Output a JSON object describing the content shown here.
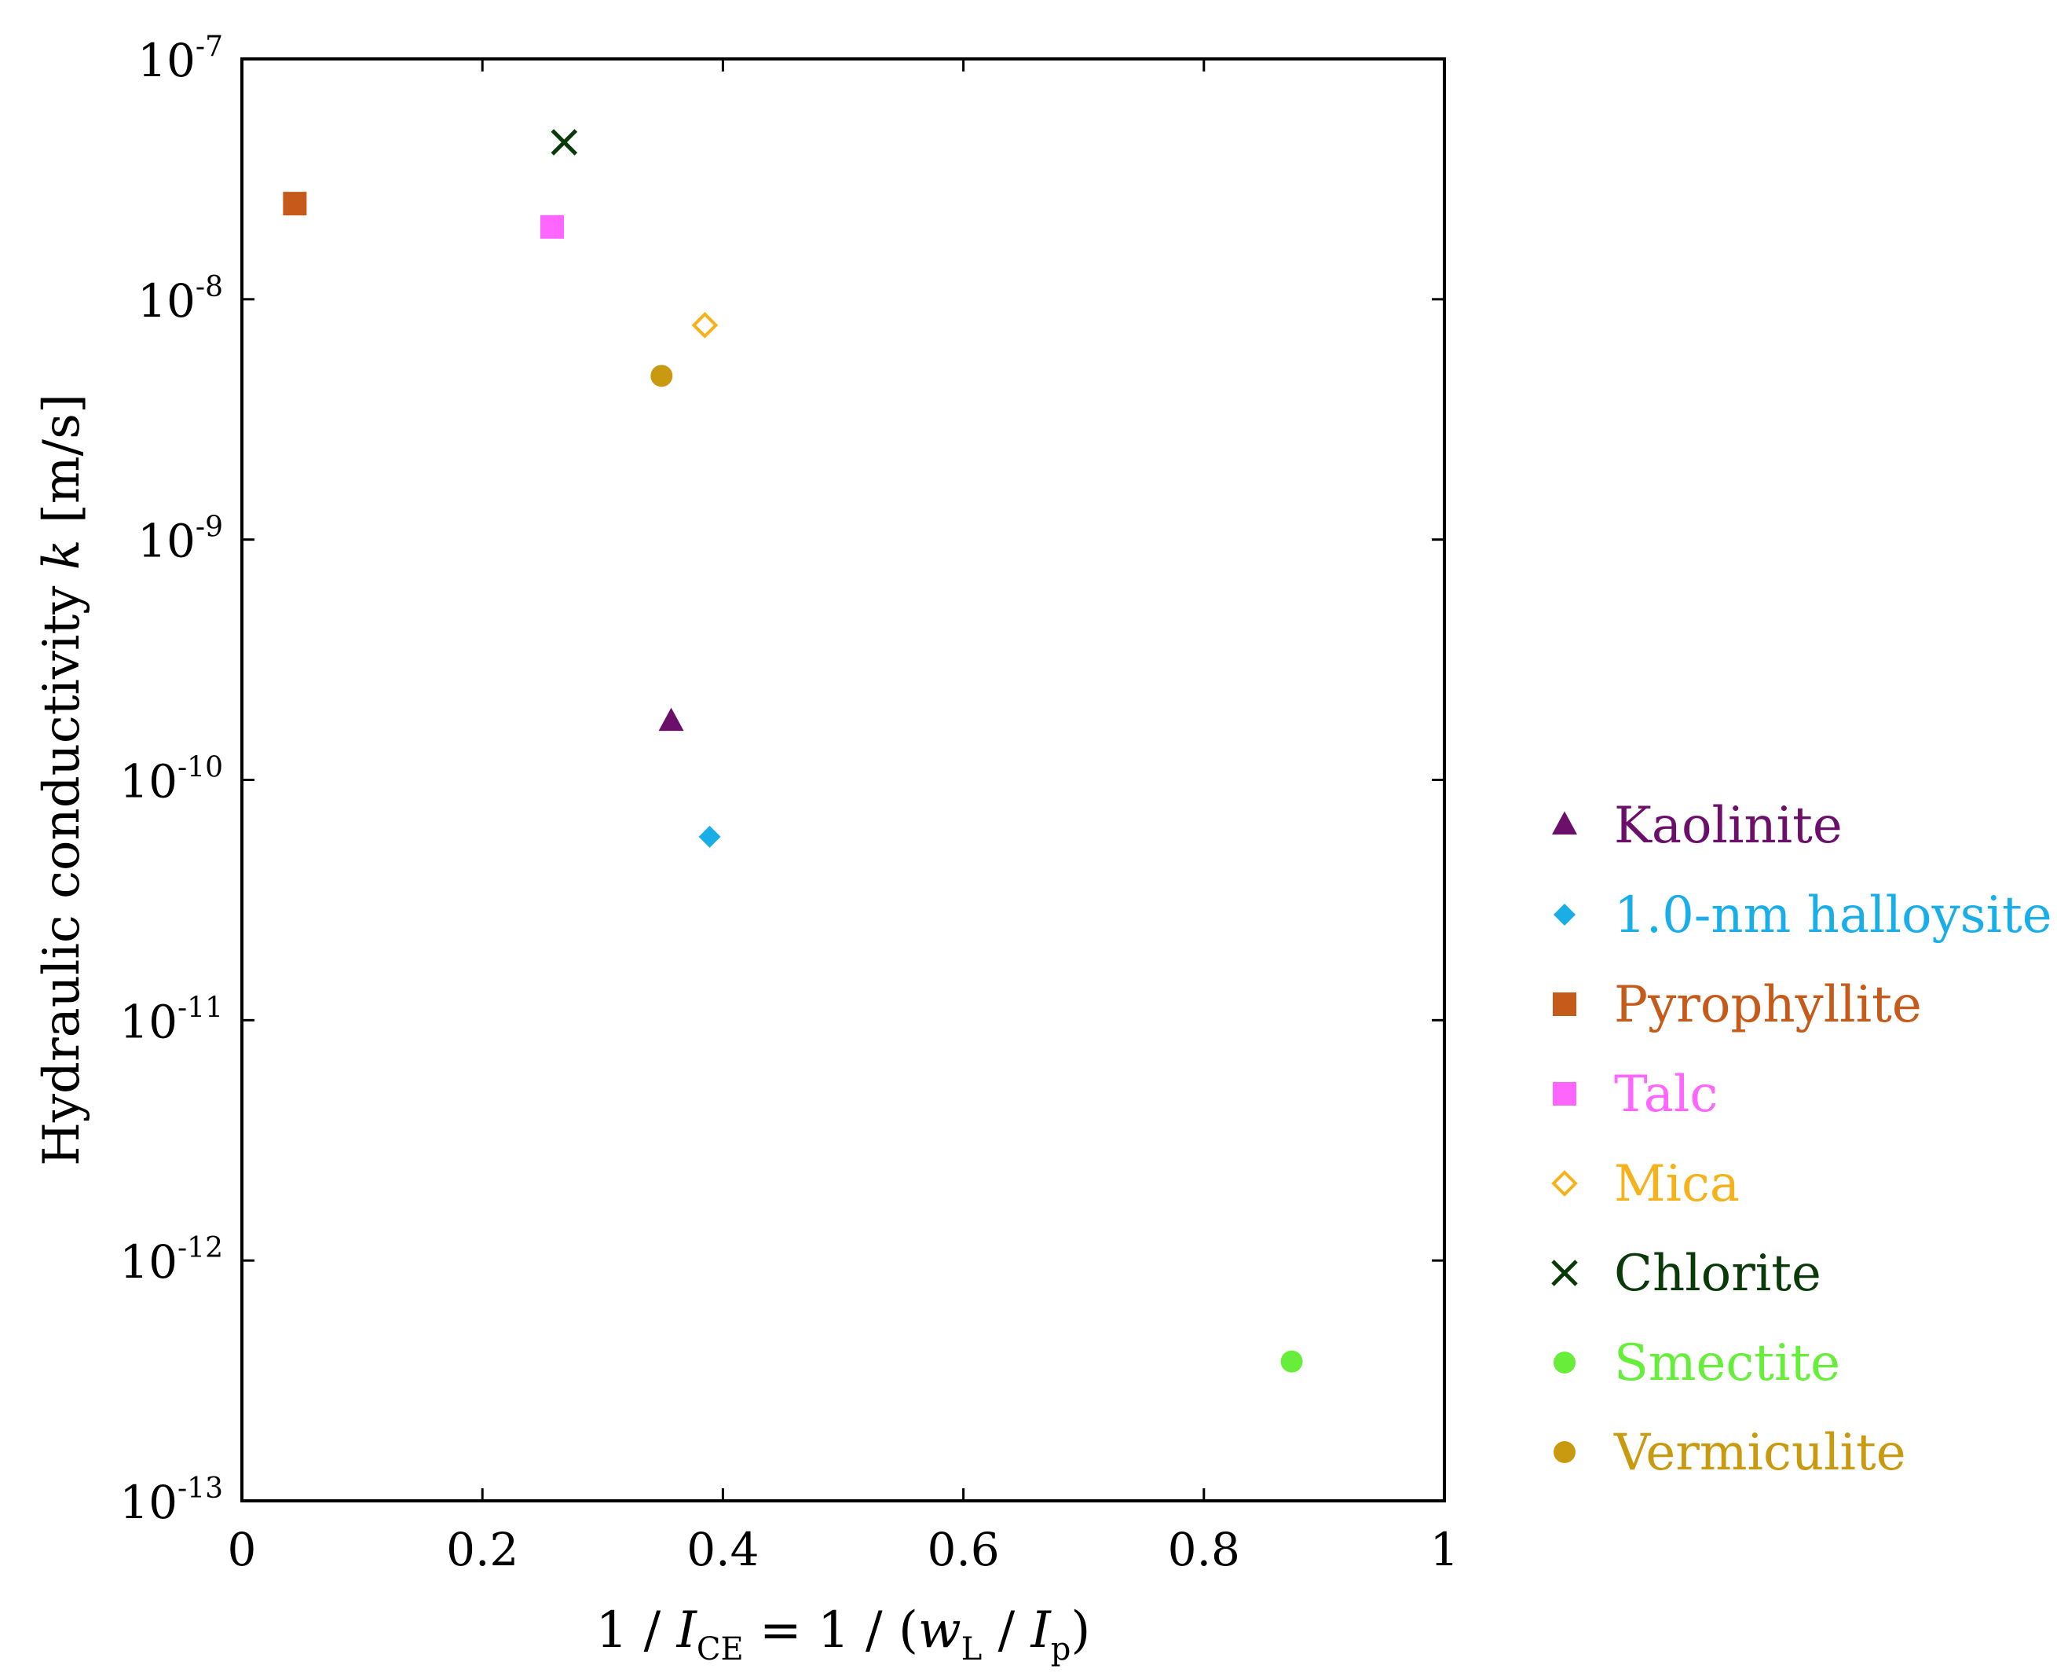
{
  "chart_data": {
    "type": "scatter",
    "title": "",
    "xlabel": {
      "parts": [
        {
          "text": "1 / ",
          "style": "normal"
        },
        {
          "text": "I",
          "style": "italic"
        },
        {
          "text": "CE",
          "style": "sub"
        },
        {
          "text": " = 1 / (",
          "style": "normal"
        },
        {
          "text": "w",
          "style": "italic"
        },
        {
          "text": "L",
          "style": "sub"
        },
        {
          "text": " / ",
          "style": "normal"
        },
        {
          "text": "I",
          "style": "italic"
        },
        {
          "text": "p",
          "style": "sub"
        },
        {
          "text": ")",
          "style": "normal"
        }
      ]
    },
    "ylabel": {
      "parts": [
        {
          "text": "Hydraulic conductivity ",
          "style": "normal"
        },
        {
          "text": "k",
          "style": "italic"
        },
        {
          "text": " [m/s]",
          "style": "normal"
        }
      ]
    },
    "xlim": [
      0,
      1
    ],
    "ylim": [
      1e-13,
      1e-07
    ],
    "yscale": "log",
    "xticks": [
      {
        "value": 0,
        "label": "0"
      },
      {
        "value": 0.2,
        "label": "0.2"
      },
      {
        "value": 0.4,
        "label": "0.4"
      },
      {
        "value": 0.6,
        "label": "0.6"
      },
      {
        "value": 0.8,
        "label": "0.8"
      },
      {
        "value": 1,
        "label": "1"
      }
    ],
    "yticks": [
      {
        "value": 1e-07,
        "base": "10",
        "exp": "-7"
      },
      {
        "value": 1e-08,
        "base": "10",
        "exp": "-8"
      },
      {
        "value": 1e-09,
        "base": "10",
        "exp": "-9"
      },
      {
        "value": 1e-10,
        "base": "10",
        "exp": "-10"
      },
      {
        "value": 1e-11,
        "base": "10",
        "exp": "-11"
      },
      {
        "value": 1e-12,
        "base": "10",
        "exp": "-12"
      },
      {
        "value": 1e-13,
        "base": "10",
        "exp": "-13"
      }
    ],
    "grid": false,
    "legend_position": "right",
    "series": [
      {
        "name": "Kaolinite",
        "marker": "triangle",
        "color": "#6b0f6b",
        "filled": true,
        "points": [
          {
            "x": 0.357,
            "y": 1.75e-10
          }
        ]
      },
      {
        "name": "1.0-nm halloysite",
        "marker": "diamond",
        "color": "#1aaee8",
        "filled": true,
        "points": [
          {
            "x": 0.389,
            "y": 5.8e-11
          }
        ]
      },
      {
        "name": "Pyrophyllite",
        "marker": "square",
        "color": "#c55a1b",
        "filled": true,
        "points": [
          {
            "x": 0.044,
            "y": 2.5e-08
          }
        ]
      },
      {
        "name": "Talc",
        "marker": "square",
        "color": "#ff66ff",
        "filled": true,
        "points": [
          {
            "x": 0.258,
            "y": 2e-08
          }
        ]
      },
      {
        "name": "Mica",
        "marker": "diamond",
        "color": "#f5b21b",
        "filled": false,
        "points": [
          {
            "x": 0.385,
            "y": 7.8e-09
          }
        ]
      },
      {
        "name": "Chlorite",
        "marker": "x",
        "color": "#0a3a0a",
        "filled": false,
        "points": [
          {
            "x": 0.268,
            "y": 4.5e-08
          }
        ]
      },
      {
        "name": "Smectite",
        "marker": "circle",
        "color": "#66ee3a",
        "filled": true,
        "points": [
          {
            "x": 0.873,
            "y": 3.8e-13
          }
        ]
      },
      {
        "name": "Vermiculite",
        "marker": "circle",
        "color": "#c99a10",
        "filled": true,
        "points": [
          {
            "x": 0.349,
            "y": 4.8e-09
          }
        ]
      }
    ]
  }
}
